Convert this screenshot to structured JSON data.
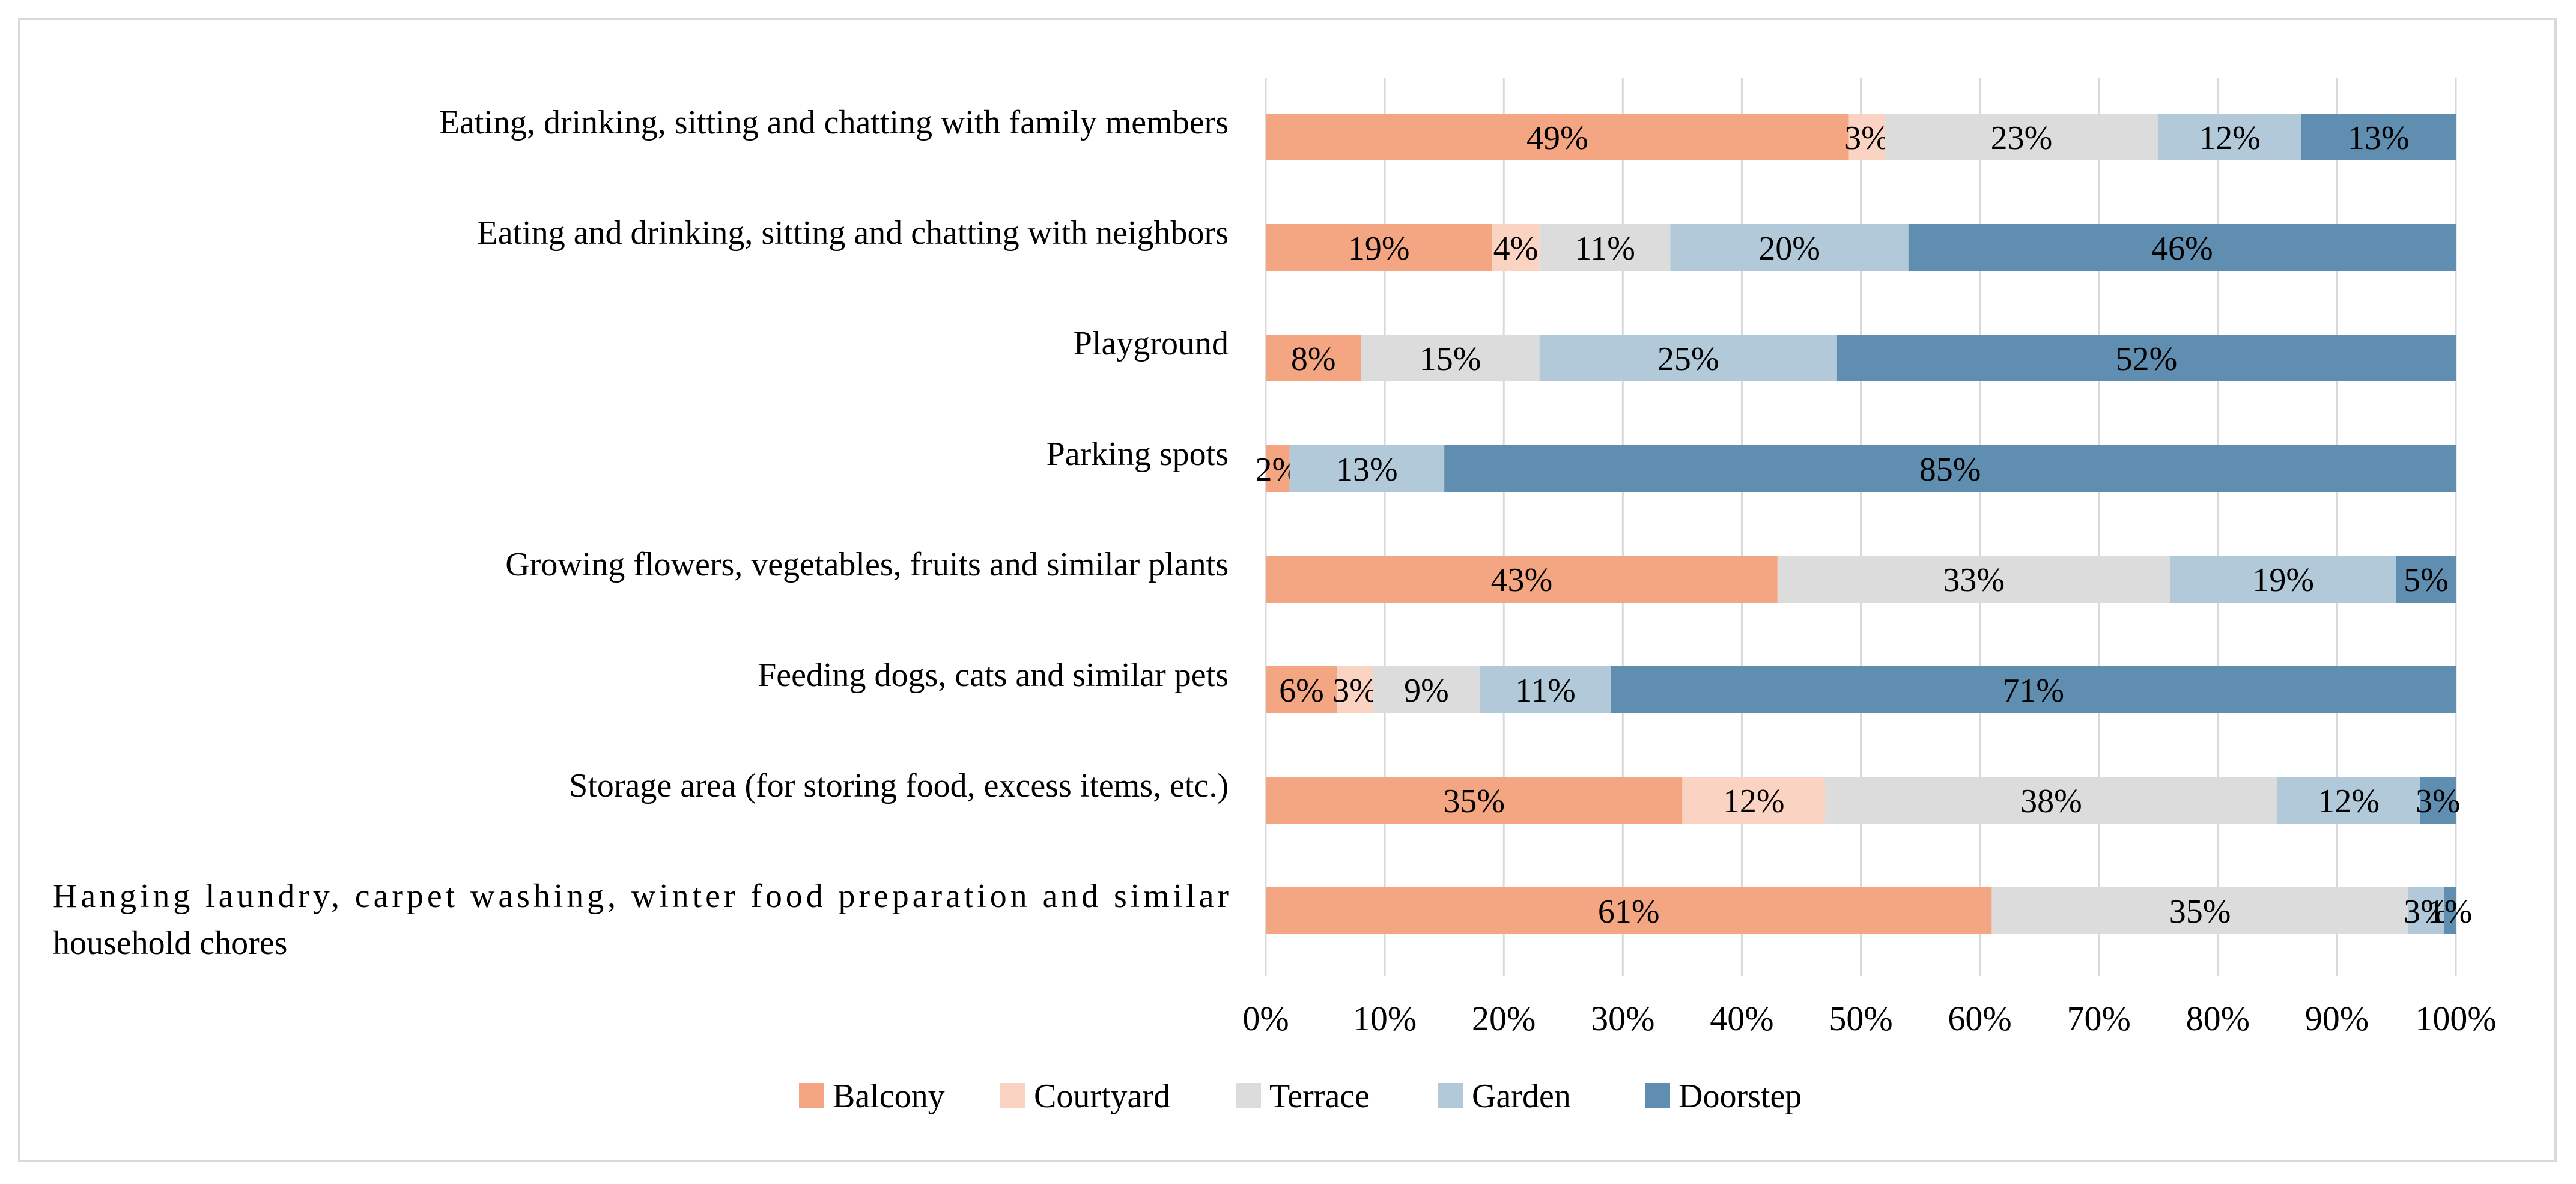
{
  "chart_data": {
    "type": "bar",
    "orientation": "horizontal",
    "stacked": "100%",
    "title": "",
    "xlabel": "",
    "ylabel": "",
    "xlim": [
      0,
      100
    ],
    "x_ticks": [
      "0%",
      "10%",
      "20%",
      "30%",
      "40%",
      "50%",
      "60%",
      "70%",
      "80%",
      "90%",
      "100%"
    ],
    "grid": "vertical",
    "legend_position": "bottom",
    "categories": [
      [
        "Eating, drinking, sitting and chatting with family members"
      ],
      [
        "Eating and drinking, sitting and chatting with neighbors"
      ],
      [
        "Playground"
      ],
      [
        "Parking spots"
      ],
      [
        "Growing flowers, vegetables, fruits and similar plants"
      ],
      [
        "Feeding dogs, cats and similar pets"
      ],
      [
        "Storage area (for storing food, excess items, etc.)"
      ],
      [
        "Hanging laundry, carpet washing, winter food preparation and similar",
        "household chores"
      ]
    ],
    "series": [
      {
        "name": "Balcony",
        "color": "#f4a582",
        "values": [
          49,
          19,
          8,
          2,
          43,
          6,
          35,
          61
        ],
        "labels": [
          "49%",
          "19%",
          "8%",
          "2%",
          "43%",
          "6%",
          "35%",
          "61%"
        ]
      },
      {
        "name": "Courtyard",
        "color": "#fbd3c2",
        "values": [
          3,
          4,
          0,
          0,
          0,
          3,
          12,
          0
        ],
        "labels": [
          "3%",
          "4%",
          "",
          "",
          "",
          "3%",
          "12%",
          ""
        ]
      },
      {
        "name": "Terrace",
        "color": "#dcdcdc",
        "values": [
          23,
          11,
          15,
          0,
          33,
          9,
          38,
          35
        ],
        "labels": [
          "23%",
          "11%",
          "15%",
          "",
          "33%",
          "9%",
          "38%",
          "35%"
        ]
      },
      {
        "name": "Garden",
        "color": "#b2c9d9",
        "values": [
          12,
          20,
          25,
          13,
          19,
          11,
          12,
          3
        ],
        "labels": [
          "12%",
          "20%",
          "25%",
          "13%",
          "19%",
          "11%",
          "12%",
          "3%"
        ]
      },
      {
        "name": "Doorstep",
        "color": "#5f8eb0",
        "values": [
          13,
          46,
          52,
          85,
          5,
          71,
          3,
          1
        ],
        "labels": [
          "13%",
          "46%",
          "52%",
          "85%",
          "5%",
          "71%",
          "3%",
          "1%"
        ]
      }
    ]
  }
}
